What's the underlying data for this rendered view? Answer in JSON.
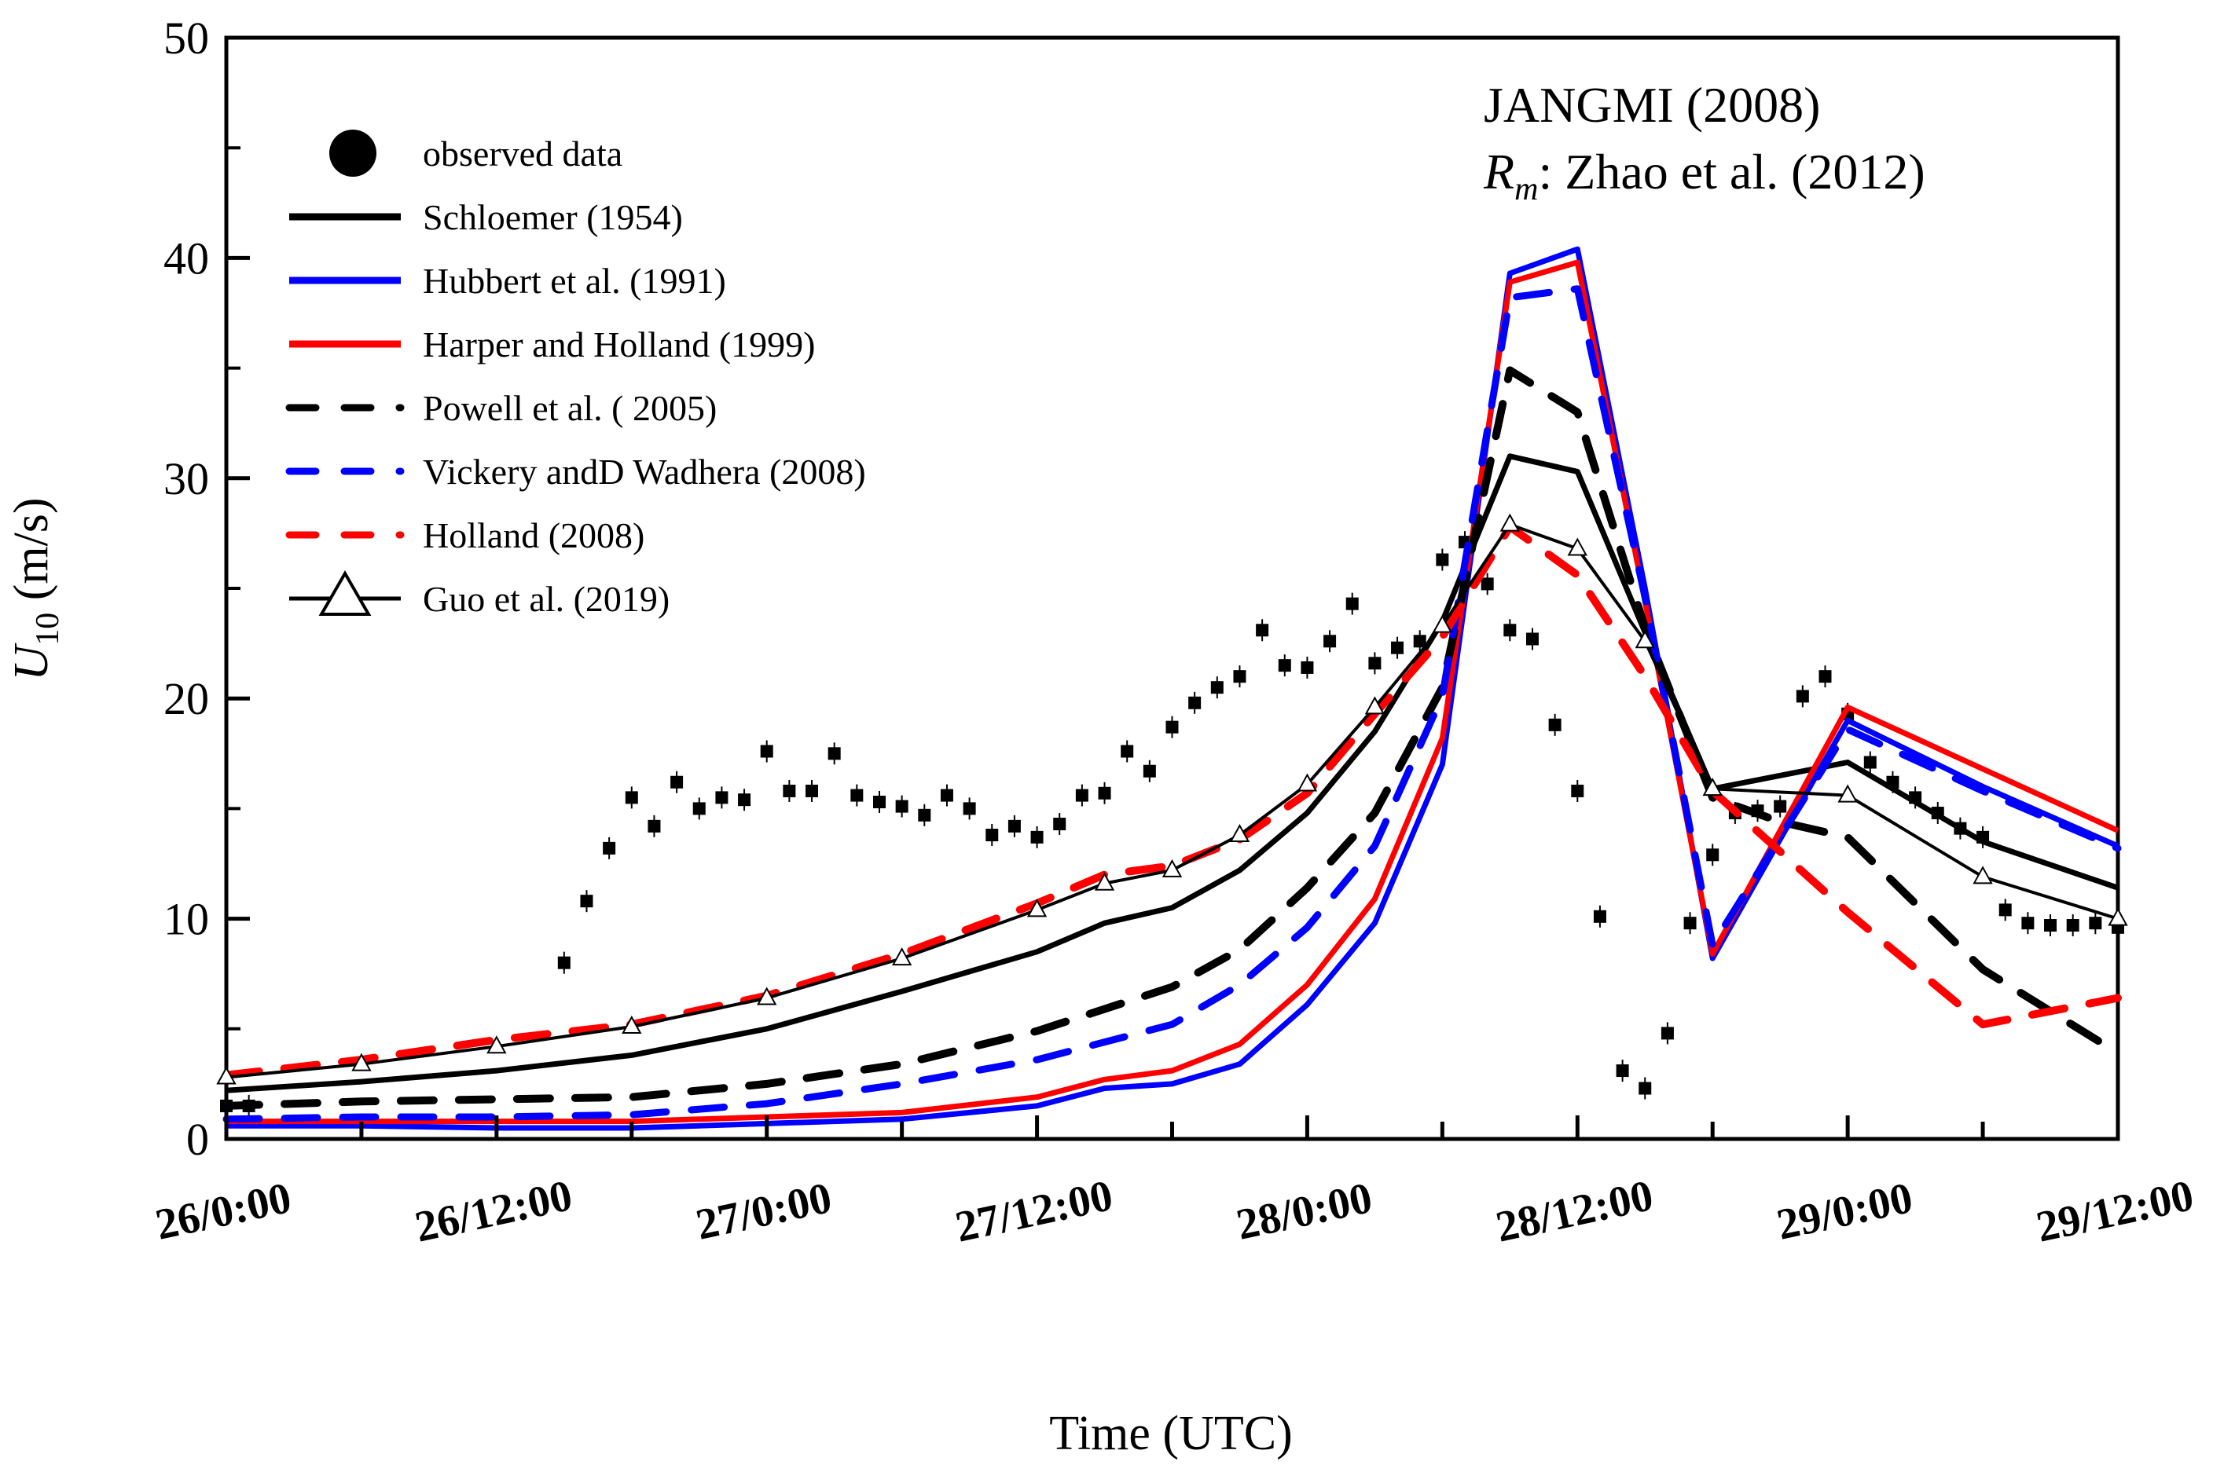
{
  "chart_data": {
    "type": "line",
    "title": "JANGMI (2008)",
    "subtitle": {
      "symbol": "R",
      "subscript": "m",
      "text": ": Zhao et al. (2012)"
    },
    "xlabel": "Time (UTC)",
    "ylabel": {
      "symbol": "U",
      "subscript": "10",
      "unit": " (m/s)"
    },
    "xlim": [
      0,
      84
    ],
    "ylim": [
      0,
      50
    ],
    "yticks": [
      0,
      10,
      20,
      30,
      40,
      50
    ],
    "ytick_labels": [
      "0",
      "10",
      "20",
      "30",
      "40",
      "50"
    ],
    "xticks": [
      0,
      12,
      24,
      36,
      48,
      60,
      72,
      84
    ],
    "xtick_labels": [
      "26/0:00",
      "26/12:00",
      "27/0:00",
      "27/12:00",
      "28/0:00",
      "28/12:00",
      "29/0:00",
      "29/12:00"
    ],
    "legend_position": "top-left",
    "series": [
      {
        "name": "observed data",
        "kind": "scatter",
        "color": "#000000",
        "x": [
          0,
          1,
          15,
          16,
          17,
          18,
          19,
          20,
          21,
          22,
          23,
          24,
          25,
          26,
          27,
          28,
          29,
          30,
          31,
          32,
          33,
          34,
          35,
          36,
          37,
          38,
          39,
          40,
          41,
          42,
          43,
          44,
          45,
          46,
          47,
          48,
          49,
          50,
          51,
          52,
          53,
          54,
          55,
          56,
          57,
          58,
          59,
          60,
          61,
          62,
          63,
          64,
          65,
          66,
          67,
          68,
          69,
          70,
          71,
          72,
          73,
          74,
          75,
          76,
          77,
          78,
          79,
          80,
          81,
          82,
          83,
          84
        ],
        "y": [
          1.5,
          1.5,
          8.0,
          10.8,
          13.2,
          15.5,
          14.2,
          16.2,
          15.0,
          15.5,
          15.4,
          17.6,
          15.8,
          15.8,
          17.5,
          15.6,
          15.3,
          15.1,
          14.7,
          15.6,
          15.0,
          13.8,
          14.2,
          13.7,
          14.3,
          15.6,
          15.7,
          17.6,
          16.7,
          18.7,
          19.8,
          20.5,
          21.0,
          23.1,
          21.5,
          21.4,
          22.6,
          24.3,
          21.6,
          22.3,
          22.6,
          26.3,
          27.1,
          25.2,
          23.1,
          22.7,
          18.8,
          15.8,
          10.1,
          3.1,
          2.3,
          4.8,
          9.8,
          12.9,
          14.8,
          14.9,
          15.1,
          20.1,
          21.0,
          19.3,
          17.1,
          16.2,
          15.5,
          14.8,
          14.1,
          13.7,
          10.4,
          9.8,
          9.7,
          9.7,
          9.8,
          9.6
        ]
      },
      {
        "name": "Schloemer (1954)",
        "kind": "line",
        "color": "#000000",
        "dash": "solid",
        "width": 7,
        "x": [
          0,
          6,
          12,
          18,
          24,
          30,
          36,
          39,
          42,
          45,
          48,
          51,
          54,
          57,
          60,
          63,
          66,
          72,
          78,
          84
        ],
        "y": [
          2.2,
          2.6,
          3.1,
          3.8,
          5.0,
          6.7,
          8.5,
          9.8,
          10.5,
          12.2,
          14.8,
          18.5,
          23.5,
          31.0,
          30.3,
          23.0,
          15.9,
          17.1,
          13.5,
          11.4
        ]
      },
      {
        "name": "Hubbert et al. (1991)",
        "kind": "line",
        "color": "#0000ff",
        "dash": "solid",
        "width": 7,
        "x": [
          0,
          6,
          12,
          18,
          24,
          30,
          36,
          39,
          42,
          45,
          48,
          51,
          54,
          57,
          60,
          63,
          66,
          72,
          78,
          84
        ],
        "y": [
          0.6,
          0.6,
          0.5,
          0.5,
          0.7,
          0.9,
          1.5,
          2.3,
          2.5,
          3.4,
          6.1,
          9.8,
          17.0,
          39.3,
          40.4,
          25.0,
          8.2,
          19.0,
          16.0,
          13.3
        ]
      },
      {
        "name": "Harper and Holland (1999)",
        "kind": "line",
        "color": "#ff0000",
        "dash": "solid",
        "width": 7,
        "x": [
          0,
          6,
          12,
          18,
          24,
          30,
          36,
          39,
          42,
          45,
          48,
          51,
          54,
          57,
          60,
          63,
          66,
          72,
          78,
          84
        ],
        "y": [
          0.8,
          0.8,
          0.8,
          0.8,
          1.0,
          1.2,
          1.9,
          2.7,
          3.1,
          4.3,
          7.0,
          10.9,
          18.2,
          38.9,
          39.8,
          24.4,
          8.4,
          19.6,
          16.8,
          14.0
        ]
      },
      {
        "name": "Powell et al. ( 2005)",
        "kind": "line",
        "color": "#000000",
        "dash": "long",
        "width": 10,
        "x": [
          0,
          6,
          12,
          18,
          24,
          30,
          36,
          42,
          45,
          48,
          51,
          54,
          57,
          60,
          63,
          66,
          69,
          72,
          78,
          84
        ],
        "y": [
          1.5,
          1.7,
          1.8,
          1.9,
          2.5,
          3.4,
          4.9,
          6.9,
          8.6,
          11.4,
          14.8,
          20.5,
          34.9,
          33.0,
          23.2,
          15.5,
          14.4,
          13.7,
          7.7,
          3.9
        ]
      },
      {
        "name": "Vickery andD Wadhera (2008)",
        "kind": "line",
        "color": "#0000ff",
        "dash": "long",
        "width": 9,
        "x": [
          0,
          6,
          12,
          18,
          24,
          30,
          36,
          42,
          45,
          48,
          51,
          54,
          57,
          60,
          63,
          66,
          72,
          78,
          84
        ],
        "y": [
          0.9,
          1.0,
          1.0,
          1.1,
          1.6,
          2.5,
          3.6,
          5.2,
          7.0,
          9.6,
          13.3,
          20.1,
          38.2,
          38.6,
          24.6,
          8.8,
          18.6,
          15.8,
          13.2
        ]
      },
      {
        "name": "Holland (2008)",
        "kind": "line",
        "color": "#ff0000",
        "dash": "long",
        "width": 10,
        "x": [
          0,
          6,
          12,
          18,
          24,
          30,
          36,
          39,
          42,
          45,
          48,
          51,
          54,
          57,
          60,
          63,
          66,
          72,
          78,
          84
        ],
        "y": [
          2.9,
          3.6,
          4.5,
          5.2,
          6.5,
          8.4,
          10.7,
          12.0,
          12.4,
          13.6,
          15.7,
          19.3,
          22.8,
          27.8,
          25.6,
          21.0,
          15.8,
          10.3,
          5.2,
          6.4
        ]
      },
      {
        "name": "Guo et al. (2019)",
        "kind": "line-marker",
        "color": "#000000",
        "dash": "solid",
        "width": 4,
        "x": [
          0,
          6,
          12,
          18,
          24,
          30,
          36,
          39,
          42,
          45,
          48,
          51,
          54,
          57,
          60,
          63,
          66,
          72,
          78,
          84
        ],
        "y": [
          2.8,
          3.4,
          4.2,
          5.1,
          6.4,
          8.2,
          10.4,
          11.6,
          12.2,
          13.8,
          16.1,
          19.6,
          23.3,
          27.9,
          26.8,
          22.6,
          15.9,
          15.6,
          11.9,
          10.0
        ]
      }
    ]
  }
}
